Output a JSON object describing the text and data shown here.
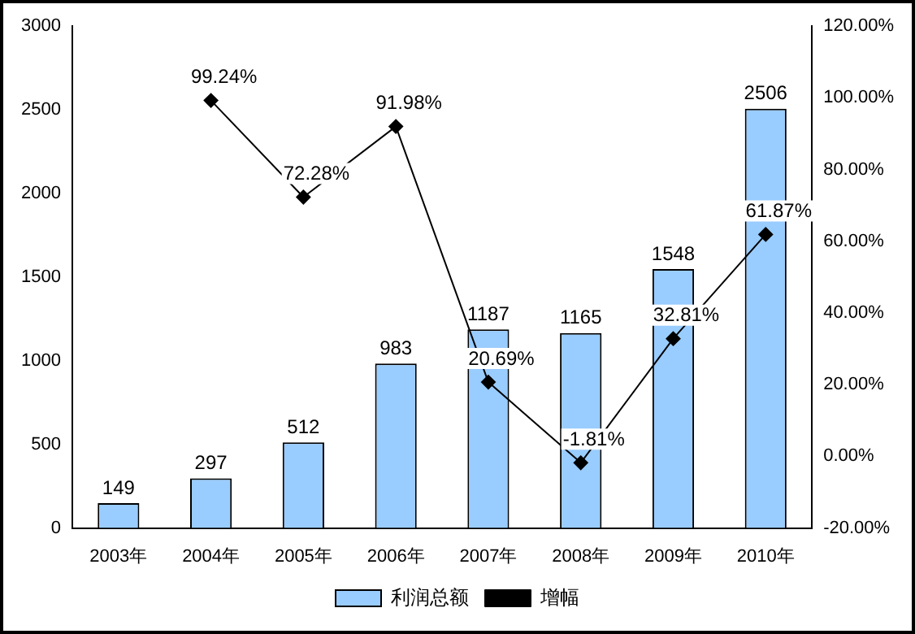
{
  "chart_data": {
    "type": "bar",
    "categories": [
      "2003年",
      "2004年",
      "2005年",
      "2006年",
      "2007年",
      "2008年",
      "2009年",
      "2010年"
    ],
    "series": [
      {
        "name": "利润总额",
        "color": "#99ccff",
        "values": [
          149,
          297,
          512,
          983,
          1187,
          1165,
          1548,
          2506
        ]
      },
      {
        "name": "增幅",
        "type": "line",
        "axis": "y2",
        "color": "#000000",
        "values": [
          null,
          99.24,
          72.28,
          91.98,
          20.69,
          -1.81,
          32.81,
          61.87
        ],
        "value_labels": [
          null,
          "99.24%",
          "72.28%",
          "91.98%",
          "20.69%",
          "-1.81%",
          "32.81%",
          "61.87%"
        ]
      }
    ],
    "data_labels": true,
    "marker": "diamond",
    "line_style": "solid",
    "legend": "bottom",
    "grid": false,
    "ylim": [
      0,
      3000
    ],
    "yticks": [
      0,
      500,
      1000,
      1500,
      2000,
      2500,
      3000
    ],
    "y2lim": [
      -20,
      120
    ],
    "y2ticks": [
      {
        "value": -20,
        "label": "-20.00%"
      },
      {
        "value": 0,
        "label": "0.00%"
      },
      {
        "value": 20,
        "label": "20.00%"
      },
      {
        "value": 40,
        "label": "40.00%"
      },
      {
        "value": 60,
        "label": "60.00%"
      },
      {
        "value": 80,
        "label": "80.00%"
      },
      {
        "value": 100,
        "label": "100.00%"
      },
      {
        "value": 120,
        "label": "120.00%"
      }
    ]
  }
}
